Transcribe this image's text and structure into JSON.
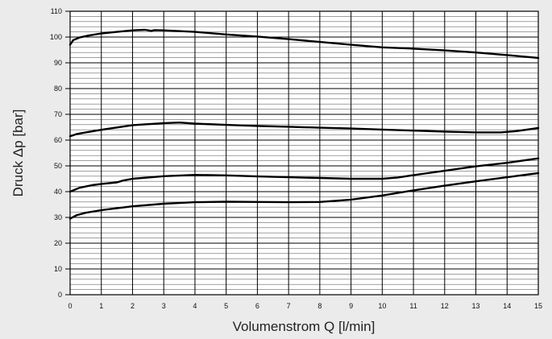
{
  "chart_data": {
    "type": "line",
    "title": "",
    "xlabel": "Volumenstrom Q [l/min]",
    "ylabel": "Druck Δp [bar]",
    "xlim": [
      0,
      15
    ],
    "ylim": [
      0,
      110
    ],
    "x_ticks": [
      0,
      1,
      2,
      3,
      4,
      5,
      6,
      7,
      8,
      9,
      10,
      11,
      12,
      13,
      14,
      15
    ],
    "y_ticks": [
      0,
      10,
      20,
      30,
      40,
      50,
      60,
      70,
      80,
      90,
      100,
      110
    ],
    "x_tick_labels": [
      "0",
      "1",
      "2",
      "3",
      "4",
      "5",
      "6",
      "7",
      "8",
      "9",
      "10",
      "11",
      "12",
      "13",
      "14",
      "15"
    ],
    "y_tick_labels": [
      "0",
      "10",
      "20",
      "30",
      "40",
      "50",
      "60",
      "70",
      "80",
      "90",
      "100",
      "110"
    ],
    "grid": true,
    "minor_grid_y": 2,
    "series": [
      {
        "x": [
          0,
          0.1,
          0.3,
          0.6,
          1,
          1.5,
          2,
          2.4,
          2.6,
          2.7,
          3,
          4,
          5,
          6,
          7,
          8,
          9,
          10,
          11,
          12,
          13,
          14,
          15
        ],
        "values": [
          97,
          98.8,
          99.8,
          100.6,
          101.4,
          102,
          102.6,
          102.8,
          102.4,
          102.7,
          102.6,
          102,
          101,
          100.2,
          99.2,
          98.1,
          97,
          96,
          95.5,
          94.8,
          94,
          93,
          91.9
        ]
      },
      {
        "x": [
          0,
          0.2,
          0.5,
          1,
          2,
          3,
          3.5,
          4,
          5,
          6,
          7,
          8,
          9,
          10,
          11,
          12,
          13,
          13.8,
          14.3,
          15
        ],
        "values": [
          61.5,
          62.3,
          63,
          64,
          65.8,
          66.6,
          66.8,
          66.4,
          65.9,
          65.5,
          65.2,
          64.8,
          64.5,
          64.1,
          63.7,
          63.3,
          63,
          63,
          63.5,
          64.7
        ]
      },
      {
        "x": [
          0,
          0.3,
          0.7,
          1,
          1.5,
          1.7,
          2,
          3,
          4,
          5,
          6,
          7,
          8,
          9,
          10,
          10.5,
          11,
          12,
          13,
          14,
          15
        ],
        "values": [
          40,
          41.5,
          42.5,
          43,
          43.6,
          44.3,
          45,
          46,
          46.5,
          46.3,
          45.9,
          45.6,
          45.3,
          45,
          45,
          45.5,
          46.4,
          48.1,
          49.8,
          51.2,
          52.9
        ]
      },
      {
        "x": [
          0,
          0.2,
          0.5,
          1,
          2,
          3,
          4,
          5,
          6,
          7,
          8,
          9,
          10,
          11,
          12,
          13,
          14,
          15
        ],
        "values": [
          29.5,
          30.8,
          31.8,
          32.8,
          34.3,
          35.3,
          35.9,
          36.1,
          36,
          35.9,
          36,
          36.9,
          38.5,
          40.5,
          42.3,
          44,
          45.6,
          47.2
        ]
      }
    ]
  }
}
